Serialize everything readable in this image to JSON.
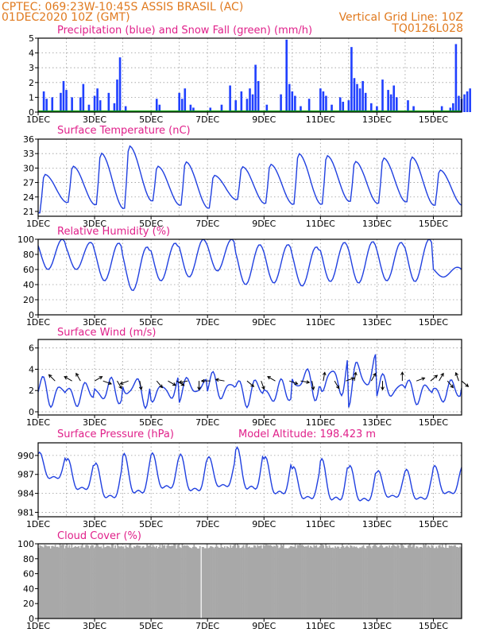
{
  "header": {
    "line1": "CPTEC:   069:23W-10:45S   ASSIS BRASIL (AC)",
    "line2": "01DEC2020 10Z (GMT)",
    "grid_note": "Vertical Grid Line: 10Z",
    "code": "TQ0126L028"
  },
  "colors": {
    "precip": "#2040ff",
    "snow": "#00a000",
    "line": "#2040e0",
    "cloud": "#a8a8a8",
    "title": "#e0208a",
    "header": "#e07a1f"
  },
  "x_axis": {
    "labels": [
      "1DEC",
      "3DEC",
      "5DEC",
      "7DEC",
      "9DEC",
      "11DEC",
      "13DEC",
      "15DEC"
    ],
    "days": 15
  },
  "chart_data": [
    {
      "type": "bar",
      "title": "Precipitation (blue) and Snow Fall (green) (mm/h)",
      "ylim": [
        0,
        5
      ],
      "yticks": [
        0,
        1,
        2,
        3,
        4,
        5
      ],
      "series": [
        {
          "name": "Precipitation",
          "points": [
            [
              0.2,
              1.4
            ],
            [
              0.3,
              0.9
            ],
            [
              0.5,
              1.0
            ],
            [
              0.8,
              1.3
            ],
            [
              0.9,
              2.1
            ],
            [
              1.0,
              1.5
            ],
            [
              1.2,
              1.0
            ],
            [
              1.5,
              1.0
            ],
            [
              1.6,
              1.9
            ],
            [
              1.8,
              0.5
            ],
            [
              2.0,
              1.1
            ],
            [
              2.1,
              1.6
            ],
            [
              2.2,
              0.8
            ],
            [
              2.5,
              1.3
            ],
            [
              2.7,
              0.6
            ],
            [
              2.8,
              2.2
            ],
            [
              2.9,
              3.7
            ],
            [
              3.1,
              0.4
            ],
            [
              4.2,
              0.9
            ],
            [
              4.3,
              0.5
            ],
            [
              5.0,
              1.3
            ],
            [
              5.1,
              0.9
            ],
            [
              5.2,
              1.6
            ],
            [
              5.4,
              0.5
            ],
            [
              5.5,
              0.3
            ],
            [
              6.1,
              0.3
            ],
            [
              6.5,
              0.5
            ],
            [
              6.8,
              1.8
            ],
            [
              7.0,
              0.8
            ],
            [
              7.2,
              1.4
            ],
            [
              7.4,
              0.9
            ],
            [
              7.5,
              1.6
            ],
            [
              7.6,
              1.2
            ],
            [
              7.7,
              3.2
            ],
            [
              7.8,
              2.1
            ],
            [
              8.1,
              0.5
            ],
            [
              8.6,
              1.2
            ],
            [
              8.8,
              4.9
            ],
            [
              8.9,
              1.9
            ],
            [
              9.0,
              1.4
            ],
            [
              9.1,
              1.1
            ],
            [
              9.3,
              0.4
            ],
            [
              9.6,
              0.9
            ],
            [
              10.0,
              1.6
            ],
            [
              10.1,
              1.4
            ],
            [
              10.2,
              1.1
            ],
            [
              10.4,
              0.5
            ],
            [
              10.7,
              1.0
            ],
            [
              10.8,
              0.7
            ],
            [
              11.0,
              0.8
            ],
            [
              11.1,
              4.4
            ],
            [
              11.2,
              2.3
            ],
            [
              11.3,
              1.9
            ],
            [
              11.4,
              1.6
            ],
            [
              11.5,
              2.1
            ],
            [
              11.6,
              1.3
            ],
            [
              11.8,
              0.6
            ],
            [
              12.0,
              0.4
            ],
            [
              12.2,
              2.2
            ],
            [
              12.4,
              1.5
            ],
            [
              12.5,
              1.2
            ],
            [
              12.6,
              1.8
            ],
            [
              12.7,
              1.0
            ],
            [
              13.1,
              0.8
            ],
            [
              13.3,
              0.4
            ],
            [
              14.3,
              0.4
            ],
            [
              14.6,
              0.3
            ],
            [
              14.7,
              0.6
            ],
            [
              14.8,
              4.6
            ],
            [
              14.9,
              1.1
            ],
            [
              15.0,
              0.9
            ],
            [
              15.1,
              1.2
            ],
            [
              15.2,
              1.4
            ],
            [
              15.3,
              1.6
            ]
          ]
        },
        {
          "name": "Snow Fall",
          "points": []
        }
      ]
    },
    {
      "type": "line",
      "title": "Surface Temperature (nC)",
      "ylim": [
        20,
        36
      ],
      "yticks": [
        21,
        24,
        27,
        30,
        33,
        36
      ],
      "daily_max": [
        28.7,
        30.4,
        33.1,
        34.6,
        30.4,
        31.3,
        28.5,
        30.3,
        30.8,
        33.0,
        32.6,
        31.4,
        32.1,
        32.3,
        29.6
      ],
      "daily_min": [
        20.6,
        22.8,
        22.3,
        21.5,
        23.1,
        22.2,
        21.6,
        23.4,
        22.6,
        22.4,
        22.4,
        23.0,
        22.6,
        22.9,
        22.2
      ]
    },
    {
      "type": "line",
      "title": "Relative Humidity (%)",
      "ylim": [
        0,
        100
      ],
      "yticks": [
        0,
        20,
        40,
        60,
        80,
        100
      ],
      "daily_max": [
        100,
        96,
        95,
        90,
        95,
        100,
        100,
        93,
        93,
        90,
        96,
        97,
        96,
        100,
        63
      ],
      "daily_min": [
        60,
        60,
        45,
        32,
        45,
        50,
        58,
        40,
        42,
        38,
        44,
        42,
        45,
        44,
        50
      ]
    },
    {
      "type": "line",
      "title": "Surface Wind (m/s)",
      "ylim": [
        -0.3,
        6.8
      ],
      "yticks": [
        0,
        2,
        4,
        6
      ],
      "daily_max": [
        3.5,
        3.0,
        3.3,
        4.1,
        3.5,
        3.6,
        3.8,
        3.6,
        3.1,
        4.6,
        5.7,
        6.0,
        3.6,
        3.3,
        3.1
      ],
      "daily_min": [
        0.2,
        0.4,
        0.4,
        0.3,
        0.6,
        0.8,
        0.7,
        0.4,
        0.5,
        1.0,
        0.9,
        0.4,
        0.7,
        0.6,
        0.7
      ],
      "arrows": [
        [
          0.6,
          135
        ],
        [
          1.2,
          150
        ],
        [
          1.5,
          120
        ],
        [
          2.0,
          30
        ],
        [
          2.3,
          -20
        ],
        [
          2.8,
          -60
        ],
        [
          3.2,
          200
        ],
        [
          3.6,
          -80
        ],
        [
          4.2,
          -50
        ],
        [
          4.6,
          -30
        ],
        [
          4.9,
          -30
        ],
        [
          5.3,
          190
        ],
        [
          5.7,
          -90
        ],
        [
          6.1,
          180
        ],
        [
          6.6,
          170
        ],
        [
          7.4,
          -40
        ],
        [
          7.9,
          -70
        ],
        [
          8.4,
          150
        ],
        [
          8.9,
          -20
        ],
        [
          9.3,
          -10
        ],
        [
          9.7,
          -80
        ],
        [
          10.1,
          80
        ],
        [
          10.5,
          -60
        ],
        [
          10.9,
          20
        ],
        [
          11.2,
          80
        ],
        [
          11.8,
          60
        ],
        [
          12.2,
          -90
        ],
        [
          12.9,
          90
        ],
        [
          13.4,
          20
        ],
        [
          13.9,
          40
        ],
        [
          14.2,
          60
        ],
        [
          14.5,
          -50
        ],
        [
          14.9,
          110
        ],
        [
          15.0,
          -40
        ]
      ]
    },
    {
      "type": "line",
      "title": "Surface Pressure (hPa)",
      "subtitle": "Model Altitude: 198.423 m",
      "ylim": [
        980.3,
        992
      ],
      "yticks": [
        981,
        984,
        987,
        990
      ],
      "daily_max": [
        990.5,
        989.5,
        988.8,
        990.3,
        990.4,
        990.2,
        989.8,
        991.3,
        989.8,
        988.2,
        989.5,
        988.4,
        987.6,
        987.8,
        988.4
      ],
      "daily_min": [
        985.0,
        983.0,
        981.5,
        982.0,
        983.0,
        982.5,
        983.5,
        982.5,
        982.0,
        981.5,
        980.8,
        981.0,
        982.0,
        981.5,
        982.5
      ]
    },
    {
      "type": "bar",
      "title": "Cloud Cover (%)",
      "ylim": [
        0,
        100
      ],
      "yticks": [
        0,
        20,
        40,
        60,
        80,
        100
      ],
      "mean_value": 96,
      "gap_day": 5.75
    }
  ]
}
